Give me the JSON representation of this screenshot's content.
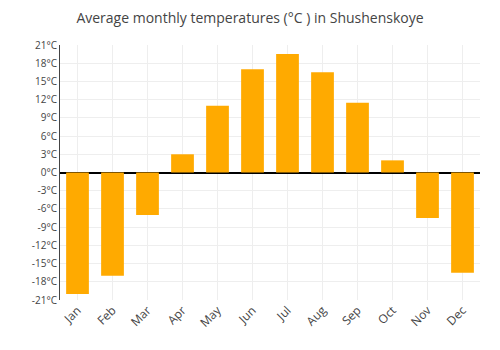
{
  "chart_data": {
    "type": "bar",
    "title": "Average monthly temperatures (°C ) in Shushenskoye",
    "categories": [
      "Jan",
      "Feb",
      "Mar",
      "Apr",
      "May",
      "Jun",
      "Jul",
      "Aug",
      "Sep",
      "Oct",
      "Nov",
      "Dec"
    ],
    "values": [
      -20,
      -17,
      -7,
      3,
      11,
      17,
      19.5,
      16.5,
      11.5,
      2,
      -7.5,
      -16.5
    ],
    "color": "#FFAA00",
    "ylim": [
      -21,
      21
    ],
    "yticks": [
      {
        "value": -21,
        "label": "-21°C"
      },
      {
        "value": -18,
        "label": "-18°C"
      },
      {
        "value": -15,
        "label": "-15°C"
      },
      {
        "value": -12,
        "label": "-12°C"
      },
      {
        "value": -9,
        "label": "-9°C"
      },
      {
        "value": -6,
        "label": "-6°C"
      },
      {
        "value": -3,
        "label": "-3°C"
      },
      {
        "value": 0,
        "label": "0°C"
      },
      {
        "value": 3,
        "label": "3°C"
      },
      {
        "value": 6,
        "label": "6°C"
      },
      {
        "value": 9,
        "label": "9°C"
      },
      {
        "value": 12,
        "label": "12°C"
      },
      {
        "value": 15,
        "label": "15°C"
      },
      {
        "value": 18,
        "label": "18°C"
      },
      {
        "value": 21,
        "label": "21°C"
      }
    ],
    "grid": true
  }
}
